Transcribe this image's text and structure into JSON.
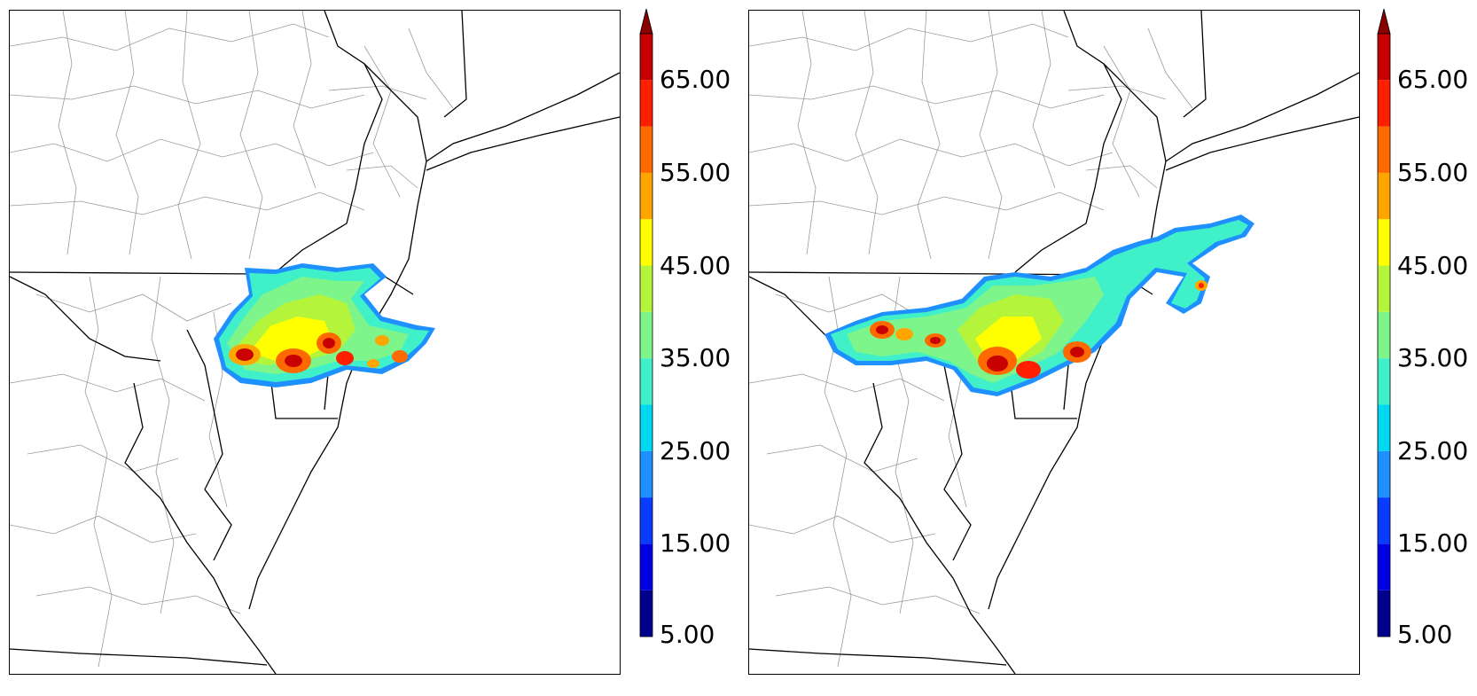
{
  "maps": [
    {
      "id": "left"
    },
    {
      "id": "right"
    }
  ],
  "colorbar": {
    "min": 5,
    "max": 70,
    "extend": "max",
    "tick_labels": [
      "5.00",
      "15.00",
      "25.00",
      "35.00",
      "45.00",
      "55.00",
      "65.00"
    ],
    "levels": [
      {
        "from": 5,
        "to": 10,
        "color": "#00008b"
      },
      {
        "from": 10,
        "to": 15,
        "color": "#0000e6"
      },
      {
        "from": 15,
        "to": 20,
        "color": "#0a3cff"
      },
      {
        "from": 20,
        "to": 25,
        "color": "#1e90ff"
      },
      {
        "from": 25,
        "to": 30,
        "color": "#00d7f0"
      },
      {
        "from": 30,
        "to": 35,
        "color": "#3ff0c8"
      },
      {
        "from": 35,
        "to": 40,
        "color": "#7df58a"
      },
      {
        "from": 40,
        "to": 45,
        "color": "#b4f53c"
      },
      {
        "from": 45,
        "to": 50,
        "color": "#ffff00"
      },
      {
        "from": 50,
        "to": 55,
        "color": "#ffa500"
      },
      {
        "from": 55,
        "to": 60,
        "color": "#ff6a00"
      },
      {
        "from": 60,
        "to": 65,
        "color": "#ff1e00"
      },
      {
        "from": 65,
        "to": 70,
        "color": "#c80000"
      }
    ],
    "over_color": "#8b0000"
  }
}
